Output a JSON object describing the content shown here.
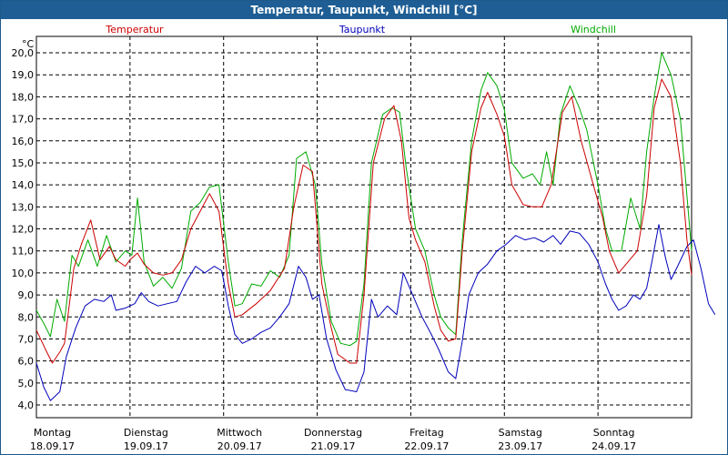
{
  "chart_data": {
    "type": "line",
    "title": "Temperatur, Taupunkt, Windchill [°C]",
    "ylabel": "°C",
    "ylim": [
      3.5,
      20.7
    ],
    "yticks": [
      "20,0",
      "19,0",
      "18,0",
      "17,0",
      "16,0",
      "15,0",
      "14,0",
      "13,0",
      "12,0",
      "11,0",
      "10,0",
      "9,0",
      "8,0",
      "7,0",
      "6,0",
      "5,0",
      "4,0"
    ],
    "xlim": [
      0,
      7
    ],
    "days": [
      {
        "name": "Montag",
        "date": "18.09.17"
      },
      {
        "name": "Dienstag",
        "date": "19.09.17"
      },
      {
        "name": "Mittwoch",
        "date": "20.09.17"
      },
      {
        "name": "Donnerstag",
        "date": "21.09.17"
      },
      {
        "name": "Freitag",
        "date": "22.09.17"
      },
      {
        "name": "Samstag",
        "date": "23.09.17"
      },
      {
        "name": "Sonntag",
        "date": "24.09.17"
      }
    ],
    "series": [
      {
        "name": "Temperatur",
        "color": "#cc0000",
        "points": [
          [
            0,
            7.4
          ],
          [
            0.1,
            6.5
          ],
          [
            0.17,
            5.9
          ],
          [
            0.25,
            6.4
          ],
          [
            0.3,
            6.8
          ],
          [
            0.4,
            10.2
          ],
          [
            0.48,
            11.3
          ],
          [
            0.58,
            12.4
          ],
          [
            0.68,
            10.6
          ],
          [
            0.78,
            11.2
          ],
          [
            0.85,
            10.6
          ],
          [
            0.95,
            10.3
          ],
          [
            1.0,
            10.6
          ],
          [
            1.08,
            10.9
          ],
          [
            1.15,
            10.4
          ],
          [
            1.25,
            10.0
          ],
          [
            1.35,
            9.9
          ],
          [
            1.45,
            10.0
          ],
          [
            1.55,
            10.6
          ],
          [
            1.65,
            12.0
          ],
          [
            1.75,
            12.8
          ],
          [
            1.85,
            13.6
          ],
          [
            1.95,
            12.8
          ],
          [
            2.05,
            9.5
          ],
          [
            2.12,
            8.0
          ],
          [
            2.2,
            8.1
          ],
          [
            2.35,
            8.6
          ],
          [
            2.5,
            9.2
          ],
          [
            2.65,
            10.2
          ],
          [
            2.75,
            13.0
          ],
          [
            2.85,
            14.9
          ],
          [
            2.95,
            14.6
          ],
          [
            3.05,
            9.5
          ],
          [
            3.15,
            7.5
          ],
          [
            3.22,
            6.3
          ],
          [
            3.35,
            5.9
          ],
          [
            3.42,
            5.9
          ],
          [
            3.5,
            9.0
          ],
          [
            3.6,
            15.0
          ],
          [
            3.72,
            17.0
          ],
          [
            3.82,
            17.6
          ],
          [
            3.9,
            16.0
          ],
          [
            3.98,
            12.5
          ],
          [
            4.05,
            11.5
          ],
          [
            4.15,
            10.5
          ],
          [
            4.25,
            8.5
          ],
          [
            4.32,
            7.4
          ],
          [
            4.4,
            6.9
          ],
          [
            4.48,
            7.0
          ],
          [
            4.55,
            11.0
          ],
          [
            4.65,
            15.5
          ],
          [
            4.75,
            17.5
          ],
          [
            4.82,
            18.2
          ],
          [
            4.92,
            17.2
          ],
          [
            5.0,
            16.2
          ],
          [
            5.08,
            14.0
          ],
          [
            5.2,
            13.1
          ],
          [
            5.3,
            13.0
          ],
          [
            5.4,
            13.0
          ],
          [
            5.5,
            14.0
          ],
          [
            5.62,
            17.3
          ],
          [
            5.72,
            18.0
          ],
          [
            5.82,
            16.0
          ],
          [
            5.95,
            14.0
          ],
          [
            6.05,
            12.5
          ],
          [
            6.12,
            11.0
          ],
          [
            6.22,
            10.0
          ],
          [
            6.32,
            10.5
          ],
          [
            6.42,
            11.0
          ],
          [
            6.52,
            13.5
          ],
          [
            6.6,
            17.5
          ],
          [
            6.68,
            18.8
          ],
          [
            6.78,
            18.0
          ],
          [
            6.88,
            15.0
          ],
          [
            6.95,
            11.5
          ],
          [
            7.0,
            9.9
          ]
        ]
      },
      {
        "name": "Taupunkt",
        "color": "#0000bb",
        "points": [
          [
            0,
            5.9
          ],
          [
            0.08,
            4.8
          ],
          [
            0.15,
            4.2
          ],
          [
            0.25,
            4.6
          ],
          [
            0.32,
            6.2
          ],
          [
            0.42,
            7.5
          ],
          [
            0.52,
            8.5
          ],
          [
            0.62,
            8.8
          ],
          [
            0.72,
            8.7
          ],
          [
            0.8,
            9.0
          ],
          [
            0.85,
            8.3
          ],
          [
            0.95,
            8.4
          ],
          [
            1.05,
            8.6
          ],
          [
            1.12,
            9.1
          ],
          [
            1.2,
            8.7
          ],
          [
            1.3,
            8.5
          ],
          [
            1.4,
            8.6
          ],
          [
            1.5,
            8.7
          ],
          [
            1.6,
            9.6
          ],
          [
            1.7,
            10.3
          ],
          [
            1.8,
            10.0
          ],
          [
            1.9,
            10.3
          ],
          [
            1.98,
            10.1
          ],
          [
            2.05,
            8.5
          ],
          [
            2.12,
            7.2
          ],
          [
            2.2,
            6.8
          ],
          [
            2.3,
            7.0
          ],
          [
            2.4,
            7.3
          ],
          [
            2.5,
            7.5
          ],
          [
            2.6,
            8.0
          ],
          [
            2.7,
            8.6
          ],
          [
            2.8,
            10.3
          ],
          [
            2.88,
            9.8
          ],
          [
            2.95,
            8.8
          ],
          [
            3.02,
            9.0
          ],
          [
            3.1,
            7.0
          ],
          [
            3.2,
            5.6
          ],
          [
            3.3,
            4.7
          ],
          [
            3.42,
            4.6
          ],
          [
            3.5,
            5.5
          ],
          [
            3.58,
            8.8
          ],
          [
            3.65,
            8.0
          ],
          [
            3.75,
            8.5
          ],
          [
            3.85,
            8.1
          ],
          [
            3.92,
            10.0
          ],
          [
            4.02,
            9.0
          ],
          [
            4.12,
            8.0
          ],
          [
            4.22,
            7.2
          ],
          [
            4.3,
            6.5
          ],
          [
            4.4,
            5.5
          ],
          [
            4.48,
            5.2
          ],
          [
            4.55,
            6.9
          ],
          [
            4.62,
            9.0
          ],
          [
            4.72,
            10.0
          ],
          [
            4.82,
            10.4
          ],
          [
            4.92,
            11.0
          ],
          [
            5.02,
            11.3
          ],
          [
            5.12,
            11.7
          ],
          [
            5.22,
            11.5
          ],
          [
            5.32,
            11.6
          ],
          [
            5.42,
            11.4
          ],
          [
            5.52,
            11.7
          ],
          [
            5.6,
            11.3
          ],
          [
            5.7,
            11.9
          ],
          [
            5.8,
            11.8
          ],
          [
            5.9,
            11.3
          ],
          [
            6.0,
            10.5
          ],
          [
            6.08,
            9.5
          ],
          [
            6.15,
            8.8
          ],
          [
            6.22,
            8.3
          ],
          [
            6.3,
            8.5
          ],
          [
            6.38,
            9.0
          ],
          [
            6.45,
            8.8
          ],
          [
            6.52,
            9.3
          ],
          [
            6.58,
            10.6
          ],
          [
            6.65,
            12.2
          ],
          [
            6.72,
            10.7
          ],
          [
            6.78,
            9.7
          ],
          [
            6.85,
            10.3
          ],
          [
            6.95,
            11.2
          ],
          [
            7.02,
            11.5
          ],
          [
            7.1,
            10.2
          ],
          [
            7.18,
            8.6
          ],
          [
            7.25,
            8.1
          ]
        ]
      },
      {
        "name": "Windchill",
        "color": "#00aa00",
        "points": [
          [
            0,
            8.3
          ],
          [
            0.08,
            7.7
          ],
          [
            0.15,
            7.1
          ],
          [
            0.22,
            8.8
          ],
          [
            0.3,
            7.8
          ],
          [
            0.38,
            10.8
          ],
          [
            0.45,
            10.3
          ],
          [
            0.55,
            11.5
          ],
          [
            0.65,
            10.3
          ],
          [
            0.75,
            11.7
          ],
          [
            0.85,
            10.5
          ],
          [
            0.95,
            11.0
          ],
          [
            1.02,
            10.8
          ],
          [
            1.08,
            13.4
          ],
          [
            1.15,
            10.5
          ],
          [
            1.25,
            9.4
          ],
          [
            1.35,
            9.8
          ],
          [
            1.45,
            9.3
          ],
          [
            1.55,
            10.2
          ],
          [
            1.65,
            12.8
          ],
          [
            1.75,
            13.2
          ],
          [
            1.85,
            13.9
          ],
          [
            1.95,
            14.0
          ],
          [
            2.05,
            10.5
          ],
          [
            2.12,
            8.5
          ],
          [
            2.2,
            8.6
          ],
          [
            2.3,
            9.5
          ],
          [
            2.4,
            9.4
          ],
          [
            2.5,
            10.1
          ],
          [
            2.6,
            9.8
          ],
          [
            2.7,
            10.8
          ],
          [
            2.78,
            15.2
          ],
          [
            2.88,
            15.5
          ],
          [
            2.98,
            14.0
          ],
          [
            3.05,
            10.4
          ],
          [
            3.15,
            7.8
          ],
          [
            3.25,
            6.8
          ],
          [
            3.35,
            6.7
          ],
          [
            3.42,
            6.9
          ],
          [
            3.5,
            9.5
          ],
          [
            3.58,
            15.0
          ],
          [
            3.7,
            17.2
          ],
          [
            3.8,
            17.5
          ],
          [
            3.88,
            17.3
          ],
          [
            3.95,
            14.8
          ],
          [
            4.05,
            12.0
          ],
          [
            4.15,
            11.0
          ],
          [
            4.25,
            9.0
          ],
          [
            4.32,
            8.0
          ],
          [
            4.4,
            7.5
          ],
          [
            4.48,
            7.2
          ],
          [
            4.55,
            11.5
          ],
          [
            4.65,
            16.0
          ],
          [
            4.75,
            18.3
          ],
          [
            4.82,
            19.1
          ],
          [
            4.92,
            18.5
          ],
          [
            5.0,
            17.4
          ],
          [
            5.08,
            15.0
          ],
          [
            5.2,
            14.3
          ],
          [
            5.3,
            14.5
          ],
          [
            5.38,
            14.0
          ],
          [
            5.45,
            15.5
          ],
          [
            5.52,
            14.0
          ],
          [
            5.6,
            17.2
          ],
          [
            5.7,
            18.5
          ],
          [
            5.8,
            17.5
          ],
          [
            5.88,
            16.5
          ],
          [
            6.0,
            14.0
          ],
          [
            6.08,
            12.0
          ],
          [
            6.15,
            11.0
          ],
          [
            6.25,
            11.0
          ],
          [
            6.35,
            13.4
          ],
          [
            6.45,
            12.0
          ],
          [
            6.52,
            15.5
          ],
          [
            6.6,
            18.0
          ],
          [
            6.68,
            20.0
          ],
          [
            6.78,
            19.0
          ],
          [
            6.88,
            17.0
          ],
          [
            6.95,
            13.5
          ],
          [
            7.0,
            11.0
          ]
        ]
      }
    ]
  }
}
